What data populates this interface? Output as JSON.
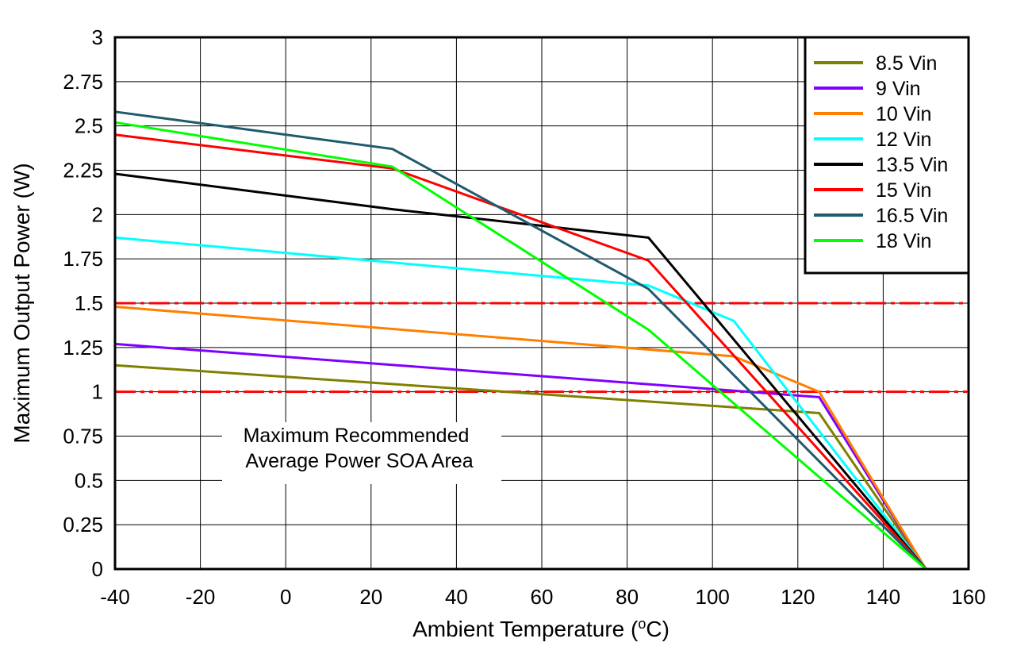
{
  "chart_data": {
    "type": "line",
    "title": "",
    "xlabel_pre": "Ambient Temperature (",
    "xlabel_sup": "o",
    "xlabel_post": "C)",
    "ylabel": "Maximum Output Power (W)",
    "xlim": [
      -40,
      160
    ],
    "ylim": [
      0,
      3
    ],
    "xticks": [
      -40,
      -20,
      0,
      20,
      40,
      60,
      80,
      100,
      120,
      140,
      160
    ],
    "yticks": [
      0,
      0.25,
      0.5,
      0.75,
      1,
      1.25,
      1.5,
      1.75,
      2,
      2.25,
      2.5,
      2.75,
      3
    ],
    "ytick_labels": [
      "0",
      "0.25",
      "0.5",
      "0.75",
      "1",
      "1.25",
      "1.5",
      "1.75",
      "2",
      "2.25",
      "2.5",
      "2.75",
      "3"
    ],
    "grid": true,
    "legend_position": "top-right",
    "annotation": [
      "Maximum Recommended",
      "Average Power SOA Area"
    ],
    "reference_lines": [
      {
        "y": 1.5,
        "color": "#ff0000",
        "style": "dash-dot"
      },
      {
        "y": 1.0,
        "color": "#ff0000",
        "style": "dash-dot-dot"
      }
    ],
    "series": [
      {
        "name": "8.5 Vin",
        "color": "#808000",
        "x": [
          -40,
          125,
          150
        ],
        "y": [
          1.15,
          0.88,
          0
        ]
      },
      {
        "name": "9 Vin",
        "color": "#8000ff",
        "x": [
          -40,
          125,
          150
        ],
        "y": [
          1.27,
          0.97,
          0
        ]
      },
      {
        "name": "10 Vin",
        "color": "#ff8000",
        "x": [
          -40,
          105,
          125,
          150
        ],
        "y": [
          1.48,
          1.2,
          1.0,
          0
        ]
      },
      {
        "name": "12 Vin",
        "color": "#00ffff",
        "x": [
          -40,
          85,
          105,
          150
        ],
        "y": [
          1.87,
          1.6,
          1.4,
          0
        ]
      },
      {
        "name": "13.5 Vin",
        "color": "#000000",
        "x": [
          -40,
          25,
          85,
          150
        ],
        "y": [
          2.23,
          2.03,
          1.87,
          0
        ]
      },
      {
        "name": "15 Vin",
        "color": "#ff0000",
        "x": [
          -40,
          25,
          85,
          150
        ],
        "y": [
          2.45,
          2.26,
          1.74,
          0
        ]
      },
      {
        "name": "16.5 Vin",
        "color": "#1f5a6e",
        "x": [
          -40,
          25,
          85,
          150
        ],
        "y": [
          2.58,
          2.37,
          1.58,
          0
        ]
      },
      {
        "name": "18 Vin",
        "color": "#00ff00",
        "x": [
          -40,
          25,
          85,
          150
        ],
        "y": [
          2.52,
          2.27,
          1.35,
          0
        ]
      }
    ]
  }
}
